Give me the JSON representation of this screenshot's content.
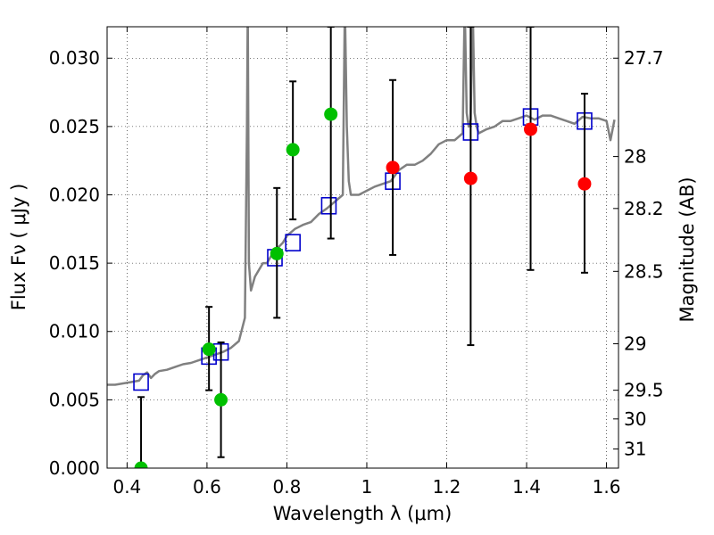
{
  "chart_data": {
    "type": "scatter",
    "xlabel": "Wavelength  λ (μm)",
    "ylabel": "Flux  Fν  ( μJy )",
    "y2label": "Magnitude (AB)",
    "xlim": [
      0.35,
      1.63
    ],
    "ylim": [
      0.0,
      0.0323
    ],
    "grid": true,
    "x_ticks": [
      0.4,
      0.6,
      0.8,
      1.0,
      1.2,
      1.4,
      1.6
    ],
    "x_tick_labels": [
      "0.4",
      "0.6",
      "0.8",
      "1",
      "1.2",
      "1.4",
      "1.6"
    ],
    "y_ticks": [
      0.0,
      0.005,
      0.01,
      0.015,
      0.02,
      0.025,
      0.03
    ],
    "y_tick_labels": [
      "0.000",
      "0.005",
      "0.010",
      "0.015",
      "0.020",
      "0.025",
      "0.030"
    ],
    "y2_ticks": [
      {
        "label": "27.7",
        "flux": 0.03
      },
      {
        "label": "28",
        "flux": 0.0228
      },
      {
        "label": "28.2",
        "flux": 0.019
      },
      {
        "label": "28.5",
        "flux": 0.0144
      },
      {
        "label": "29",
        "flux": 0.0091
      },
      {
        "label": "29.5",
        "flux": 0.0057
      },
      {
        "label": "30",
        "flux": 0.0036
      },
      {
        "label": "31",
        "flux": 0.0014
      }
    ],
    "colors": {
      "spectrum": "#808080",
      "model": "#0000cc",
      "detection_optical": "#00c000",
      "detection_nir": "#ff0000",
      "errorbar": "#000000"
    },
    "series": [
      {
        "kind": "spectrum",
        "color": "#808080",
        "x": [
          0.35,
          0.37,
          0.39,
          0.41,
          0.43,
          0.44,
          0.45,
          0.46,
          0.47,
          0.48,
          0.5,
          0.52,
          0.54,
          0.56,
          0.58,
          0.6,
          0.62,
          0.64,
          0.66,
          0.68,
          0.695,
          0.7,
          0.702,
          0.705,
          0.71,
          0.72,
          0.74,
          0.75,
          0.76,
          0.77,
          0.78,
          0.79,
          0.8,
          0.82,
          0.84,
          0.86,
          0.88,
          0.9,
          0.92,
          0.94,
          0.945,
          0.95,
          0.955,
          0.96,
          0.98,
          1.0,
          1.02,
          1.04,
          1.06,
          1.08,
          1.1,
          1.12,
          1.14,
          1.16,
          1.18,
          1.2,
          1.22,
          1.24,
          1.245,
          1.25,
          1.255,
          1.26,
          1.265,
          1.27,
          1.275,
          1.28,
          1.3,
          1.32,
          1.34,
          1.36,
          1.38,
          1.4,
          1.42,
          1.44,
          1.46,
          1.48,
          1.5,
          1.52,
          1.54,
          1.56,
          1.58,
          1.6,
          1.61,
          1.62
        ],
        "y": [
          0.0061,
          0.0061,
          0.0062,
          0.0063,
          0.0064,
          0.0068,
          0.007,
          0.0066,
          0.0069,
          0.0071,
          0.0072,
          0.0074,
          0.0076,
          0.0077,
          0.0079,
          0.0081,
          0.0083,
          0.0085,
          0.0088,
          0.0093,
          0.011,
          0.025,
          0.034,
          0.015,
          0.013,
          0.014,
          0.015,
          0.015,
          0.0155,
          0.016,
          0.0162,
          0.0165,
          0.017,
          0.0175,
          0.0178,
          0.018,
          0.0186,
          0.019,
          0.0195,
          0.02,
          0.034,
          0.025,
          0.021,
          0.02,
          0.02,
          0.0203,
          0.0206,
          0.0208,
          0.021,
          0.0218,
          0.0222,
          0.0222,
          0.0225,
          0.023,
          0.0237,
          0.024,
          0.024,
          0.0245,
          0.034,
          0.026,
          0.025,
          0.0255,
          0.034,
          0.026,
          0.025,
          0.0245,
          0.0248,
          0.025,
          0.0254,
          0.0254,
          0.0256,
          0.0258,
          0.0255,
          0.0258,
          0.0258,
          0.0256,
          0.0254,
          0.0252,
          0.0257,
          0.0256,
          0.0256,
          0.0254,
          0.024,
          0.0255
        ]
      },
      {
        "kind": "model",
        "color": "#0000cc",
        "marker": "square",
        "x": [
          0.435,
          0.605,
          0.635,
          0.77,
          0.815,
          0.905,
          1.065,
          1.26,
          1.41,
          1.545
        ],
        "y": [
          0.0063,
          0.0082,
          0.0085,
          0.0154,
          0.0165,
          0.0192,
          0.021,
          0.0246,
          0.0257,
          0.0254
        ]
      },
      {
        "kind": "detections_optical",
        "color": "#00c000",
        "marker": "circle",
        "x": [
          0.435,
          0.605,
          0.635,
          0.775,
          0.815,
          0.91
        ],
        "y": [
          0.0,
          0.0087,
          0.005,
          0.0157,
          0.0233,
          0.0259
        ],
        "err_low": [
          0.0,
          0.0057,
          0.0008,
          0.011,
          0.0182,
          0.0168
        ],
        "err_high": [
          0.0052,
          0.0118,
          0.0092,
          0.0205,
          0.0283,
          0.0323
        ]
      },
      {
        "kind": "detections_nir",
        "color": "#ff0000",
        "marker": "circle",
        "x": [
          1.065,
          1.26,
          1.41,
          1.545
        ],
        "y": [
          0.022,
          0.0212,
          0.0248,
          0.0208
        ],
        "err_low": [
          0.0156,
          0.009,
          0.0145,
          0.0143
        ],
        "err_high": [
          0.0284,
          0.0323,
          0.0323,
          0.0274
        ]
      }
    ]
  }
}
